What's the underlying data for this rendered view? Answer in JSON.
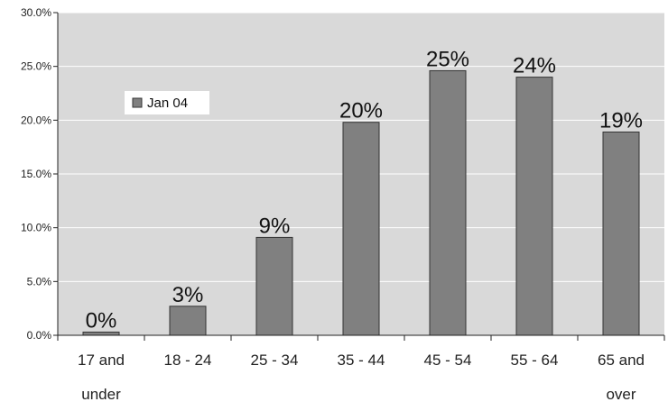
{
  "chart_data": {
    "type": "bar",
    "categories": [
      [
        "17 and",
        "under"
      ],
      [
        "18 - 24"
      ],
      [
        "25 - 34"
      ],
      [
        "35 - 44"
      ],
      [
        "45 - 54"
      ],
      [
        "55 - 64"
      ],
      [
        "65 and",
        "over"
      ]
    ],
    "series": [
      {
        "name": "Jan 04",
        "values": [
          0.3,
          2.7,
          9.1,
          19.8,
          24.6,
          24.0,
          18.9
        ],
        "data_labels": [
          "0%",
          "3%",
          "9%",
          "20%",
          "25%",
          "24%",
          "19%"
        ],
        "color": "#808080"
      }
    ],
    "yticks": [
      "0.0%",
      "5.0%",
      "10.0%",
      "15.0%",
      "20.0%",
      "25.0%",
      "30.0%"
    ],
    "ylim": [
      0,
      30
    ],
    "grid": true,
    "legend_position": "inside-top-left",
    "colors": {
      "plot_background": "#d9d9d9",
      "gridline": "#ffffff",
      "bar": "#808080"
    }
  }
}
